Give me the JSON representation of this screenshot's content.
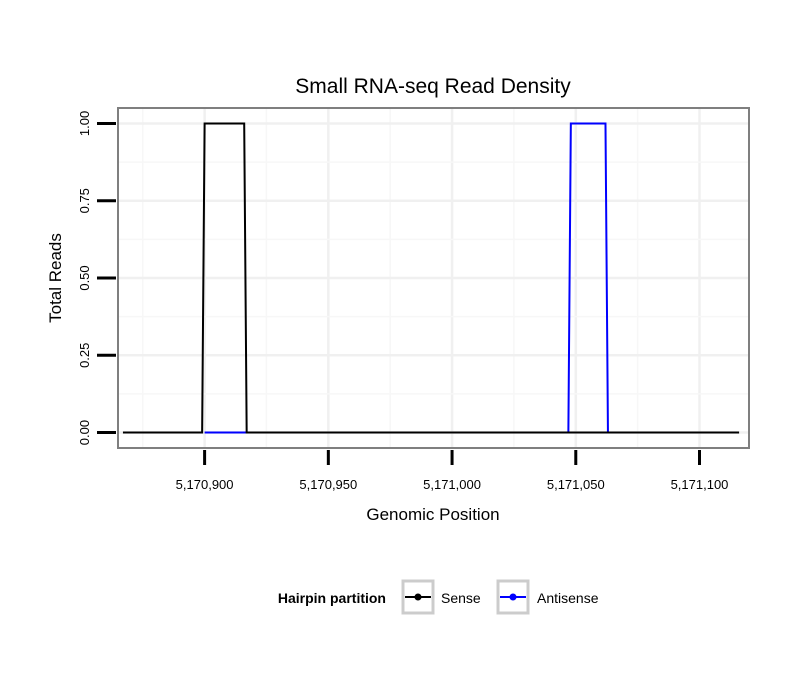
{
  "chart_data": {
    "type": "line",
    "title": "Small RNA-seq Read Density",
    "xlabel": "Genomic Position",
    "ylabel": "Total Reads",
    "xlim": [
      5170865,
      5171120
    ],
    "ylim": [
      -0.05,
      1.05
    ],
    "x_ticks": [
      5170900,
      5170950,
      5171000,
      5171050,
      5171100
    ],
    "x_tick_labels": [
      "5,170,900",
      "5,170,950",
      "5,171,000",
      "5,171,050",
      "5,171,100"
    ],
    "y_ticks": [
      0,
      0.25,
      0.5,
      0.75,
      1.0
    ],
    "y_tick_labels": [
      "0.00",
      "0.25",
      "0.50",
      "0.75",
      "1.00"
    ],
    "grid": true,
    "legend": {
      "title": "Hairpin partition",
      "position": "bottom"
    },
    "series": [
      {
        "name": "Sense",
        "color": "#000000",
        "x": [
          5170867,
          5170899,
          5170900,
          5170916,
          5170917,
          5171116
        ],
        "y": [
          0,
          0,
          1,
          1,
          0,
          0
        ]
      },
      {
        "name": "Antisense",
        "color": "#0000ff",
        "x": [
          5170900,
          5170917,
          5171047,
          5171048,
          5171062,
          5171063
        ],
        "y": [
          0,
          0,
          0,
          1,
          1,
          0
        ]
      }
    ]
  }
}
